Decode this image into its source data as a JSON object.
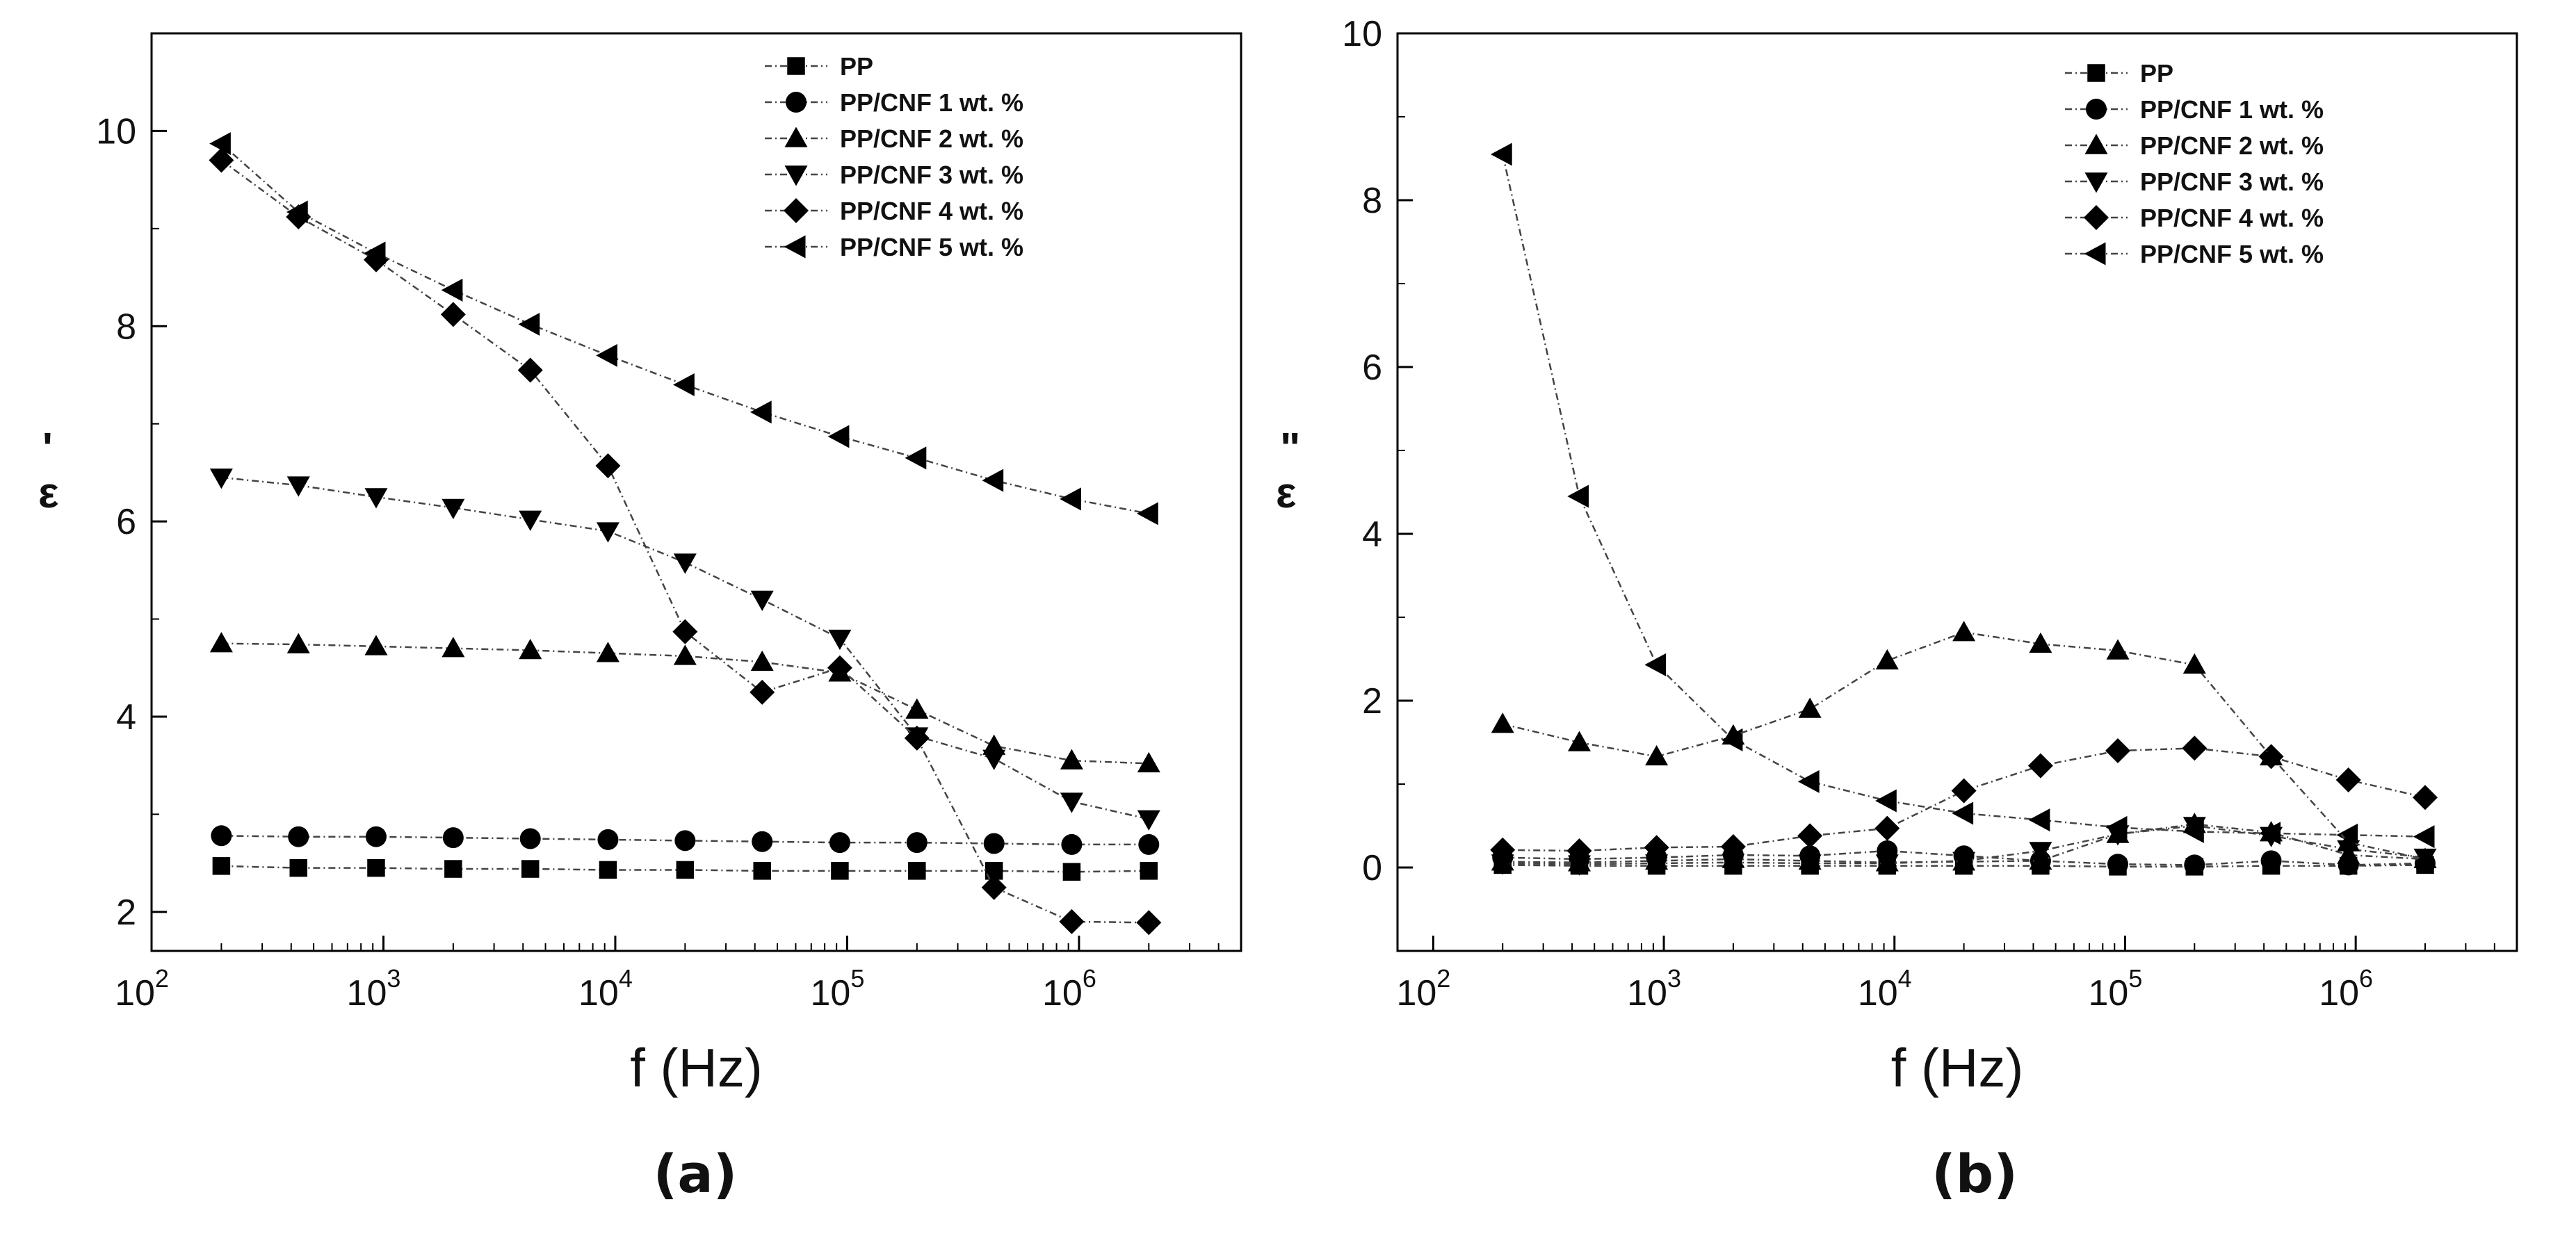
{
  "chart_data": [
    {
      "panel": "(a)",
      "type": "line",
      "xlabel": "f (Hz)",
      "ylabel": "ε'",
      "ylabel_symbol": "ε",
      "ylabel_prime": "'",
      "xscale": "log",
      "xlim": [
        100,
        5000000
      ],
      "ylim": [
        1.6,
        11.0
      ],
      "xticks": [
        {
          "v": 100,
          "base": "10",
          "exp": "2"
        },
        {
          "v": 1000,
          "base": "10",
          "exp": "3"
        },
        {
          "v": 10000,
          "base": "10",
          "exp": "4"
        },
        {
          "v": 100000,
          "base": "10",
          "exp": "5"
        },
        {
          "v": 1000000,
          "base": "10",
          "exp": "6"
        }
      ],
      "yticks": [
        2,
        4,
        6,
        8,
        10
      ],
      "legend_position": "top-right",
      "x": [
        200,
        430,
        930,
        2000,
        4300,
        9300,
        20000,
        43000,
        93000,
        200000,
        430000,
        930000,
        2000000
      ],
      "series": [
        {
          "name": "PP",
          "marker": "square",
          "values": [
            2.47,
            2.45,
            2.45,
            2.44,
            2.44,
            2.43,
            2.43,
            2.42,
            2.42,
            2.42,
            2.42,
            2.41,
            2.42
          ]
        },
        {
          "name": "PP/CNF 1 wt. %",
          "marker": "circle",
          "values": [
            2.78,
            2.77,
            2.77,
            2.76,
            2.75,
            2.74,
            2.73,
            2.72,
            2.71,
            2.71,
            2.7,
            2.69,
            2.69
          ]
        },
        {
          "name": "PP/CNF 2 wt. %",
          "marker": "triangle-up",
          "values": [
            4.75,
            4.74,
            4.72,
            4.7,
            4.68,
            4.65,
            4.62,
            4.56,
            4.45,
            4.07,
            3.7,
            3.55,
            3.52
          ]
        },
        {
          "name": "PP/CNF 3 wt. %",
          "marker": "triangle-down",
          "values": [
            6.45,
            6.37,
            6.25,
            6.14,
            6.02,
            5.9,
            5.58,
            5.2,
            4.8,
            3.8,
            3.57,
            3.13,
            2.95
          ]
        },
        {
          "name": "PP/CNF 4 wt. %",
          "marker": "diamond",
          "values": [
            9.7,
            9.12,
            8.68,
            8.12,
            7.55,
            6.57,
            4.87,
            4.25,
            4.5,
            3.78,
            2.25,
            1.9,
            1.89
          ]
        },
        {
          "name": "PP/CNF 5 wt. %",
          "marker": "triangle-left",
          "values": [
            9.87,
            9.17,
            8.75,
            8.37,
            8.02,
            7.7,
            7.4,
            7.12,
            6.87,
            6.65,
            6.42,
            6.23,
            6.08
          ]
        }
      ]
    },
    {
      "panel": "(b)",
      "type": "line",
      "xlabel": "f (Hz)",
      "ylabel": "ε\"",
      "ylabel_symbol": "ε",
      "ylabel_prime": "\"",
      "xscale": "log",
      "xlim": [
        70,
        5000000
      ],
      "ylim": [
        -1.0,
        10.0
      ],
      "xticks": [
        {
          "v": 100,
          "base": "10",
          "exp": "2"
        },
        {
          "v": 1000,
          "base": "10",
          "exp": "3"
        },
        {
          "v": 10000,
          "base": "10",
          "exp": "4"
        },
        {
          "v": 100000,
          "base": "10",
          "exp": "5"
        },
        {
          "v": 1000000,
          "base": "10",
          "exp": "6"
        }
      ],
      "yticks": [
        0,
        2,
        4,
        6,
        8,
        10
      ],
      "legend_position": "top-right",
      "x": [
        200,
        430,
        930,
        2000,
        4300,
        9300,
        20000,
        43000,
        93000,
        200000,
        430000,
        930000,
        2000000
      ],
      "series": [
        {
          "name": "PP",
          "marker": "square",
          "values": [
            0.03,
            0.02,
            0.02,
            0.02,
            0.02,
            0.02,
            0.02,
            0.02,
            0.01,
            0.01,
            0.02,
            0.02,
            0.03
          ]
        },
        {
          "name": "PP/CNF 1 wt. %",
          "marker": "circle",
          "values": [
            0.12,
            0.1,
            0.12,
            0.15,
            0.14,
            0.2,
            0.14,
            0.08,
            0.04,
            0.03,
            0.08,
            0.03,
            0.05
          ]
        },
        {
          "name": "PP/CNF 2 wt. %",
          "marker": "triangle-up",
          "values": [
            0.07,
            0.06,
            0.08,
            0.1,
            0.08,
            0.06,
            0.07,
            0.08,
            0.4,
            0.52,
            0.42,
            0.15,
            0.1
          ]
        },
        {
          "name": "PP/CNF 3 wt. %",
          "marker": "triangle-down",
          "values": [
            0.05,
            0.04,
            0.05,
            0.06,
            0.05,
            0.05,
            0.08,
            0.2,
            0.4,
            0.5,
            0.38,
            0.22,
            0.12
          ]
        },
        {
          "name": "PP/CNF 4 wt. %",
          "marker": "diamond",
          "values": [
            0.21,
            0.2,
            0.24,
            0.25,
            0.38,
            0.47,
            0.92,
            1.22,
            1.4,
            1.43,
            1.33,
            1.05,
            0.84
          ]
        },
        {
          "name": "PP/CNF 5 wt. %",
          "marker": "triangle-left",
          "values": [
            8.55,
            4.45,
            2.43,
            1.53,
            1.03,
            0.8,
            0.65,
            0.57,
            0.48,
            0.43,
            0.41,
            0.39,
            0.37
          ]
        }
      ],
      "extra_series": {
        "name": "PP/CNF 2 wt. % (upper)",
        "marker": "triangle-up",
        "values": [
          1.72,
          1.5,
          1.33,
          1.58,
          1.9,
          2.48,
          2.82,
          2.68,
          2.6,
          2.43,
          1.33,
          0.3,
          0.1
        ]
      }
    }
  ]
}
